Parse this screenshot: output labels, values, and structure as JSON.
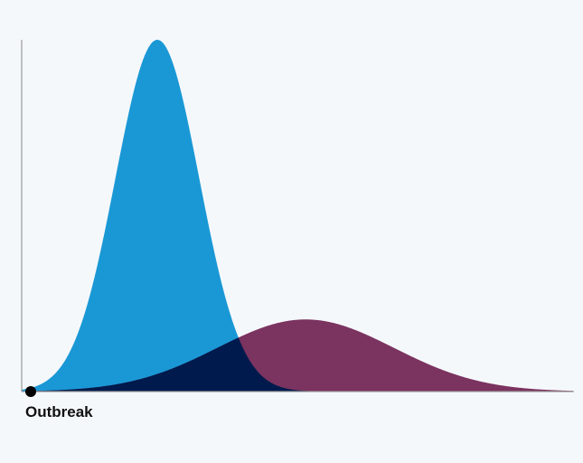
{
  "chart_data": {
    "type": "area",
    "title": "",
    "xlabel": "",
    "ylabel": "",
    "grid": false,
    "legend": "none",
    "start_marker_label": "Outbreak",
    "x_range": [
      0,
      100
    ],
    "y_range": [
      0,
      1
    ],
    "series": [
      {
        "color": "#1a98d5",
        "shape": "gaussian",
        "peak_x": 24.6,
        "peak_y": 1.0,
        "spread": 7.6
      },
      {
        "color": "#7b3360",
        "shape": "gaussian",
        "peak_x": 51.5,
        "peak_y": 0.205,
        "spread": 16.0
      }
    ],
    "overlap_color": "#001a4d",
    "axis_color": "#9a9a9a"
  }
}
